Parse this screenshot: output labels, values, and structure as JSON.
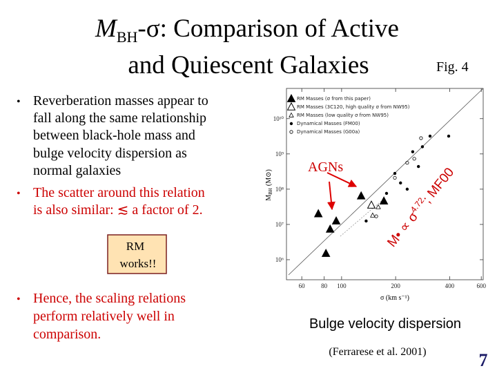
{
  "header": {
    "title": {
      "m": "M",
      "sub": "BH",
      "rest": "-σ: Comparison of Active",
      "line2": "and Quiescent Galaxies"
    },
    "fig": "Fig. 4"
  },
  "bullets": [
    {
      "lines": [
        "Reverberation masses appear to",
        "fall along the same relationship",
        "between black-hole mass and",
        "bulge velocity dispersion as",
        "normal galaxies"
      ]
    },
    {
      "lines": [
        "The scatter around this relation",
        "is also similar: ≲ a factor of 2."
      ]
    },
    {
      "lines": [
        "Hence, the scaling relations",
        "perform relatively well in",
        "comparison."
      ]
    }
  ],
  "box": {
    "lines": [
      "RM",
      "works!!"
    ]
  },
  "chart_data": {
    "type": "scatter",
    "log_x": true,
    "log_y": true,
    "xlabel": "σ (km s⁻¹)",
    "ylabel": {
      "main": "M",
      "sub": "BH",
      "unit": "(M⊙)"
    },
    "xlim": [
      49.3,
      615
    ],
    "ylim": [
      270000,
      72000000000
    ],
    "xticks": [
      60,
      80,
      100,
      200,
      400,
      600
    ],
    "yticks": [
      {
        "value": 1000000,
        "label": "10⁶"
      },
      {
        "value": 10000000,
        "label": "10⁷"
      },
      {
        "value": 100000000,
        "label": "10⁸"
      },
      {
        "value": 1000000000,
        "label": "10⁹"
      },
      {
        "value": 10000000000,
        "label": "10¹⁰"
      }
    ],
    "series": [
      {
        "name": "RM Masses (σ from this paper)",
        "marker": "triangle-filled",
        "color": "#000000",
        "x": [
          81.8,
          93.3,
          86.3,
          128.5,
          172,
          74.2
        ],
        "values": [
          1500000,
          12500000,
          7300000,
          64000000,
          46000000,
          20000000
        ]
      },
      {
        "name": "RM Masses (3C120, high quality σ from NW95)",
        "marker": "triangle-open",
        "color": "#000000",
        "x": [
          146.5
        ],
        "values": [
          35000000
        ]
      },
      {
        "name": "RM Masses (low quality σ from NW95)",
        "marker": "triangle-small",
        "color": "#000000",
        "x": [
          160,
          149
        ],
        "values": [
          31000000,
          18000000
        ]
      },
      {
        "name": "Dynamical Masses (FM00)",
        "marker": "dot",
        "color": "#000000",
        "x": [
          249,
          282,
          311,
          198,
          213,
          268,
          395,
          178,
          232,
          137
        ],
        "values": [
          1150000000,
          1600000000,
          3200000000,
          280000000,
          150000000,
          440000000,
          3200000000,
          76000000,
          100000000,
          12500000
        ]
      },
      {
        "name": "Dynamical Masses (G00a)",
        "marker": "circle-open",
        "color": "#000000",
        "x": [
          198,
          232,
          277,
          156,
          254
        ],
        "values": [
          210000000,
          560000000,
          2800000000,
          17000000,
          730000000
        ]
      }
    ],
    "annotations": {
      "agn": "AGNs",
      "relation": {
        "main": "M• ∝ σ",
        "exp": "4.72",
        "suffix": "; MF00"
      }
    }
  },
  "caption": "Bulge velocity dispersion",
  "citation": "(Ferrarese et al. 2001)",
  "page_number": "7"
}
